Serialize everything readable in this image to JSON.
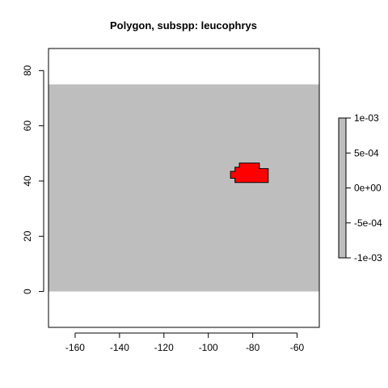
{
  "chart_data": {
    "type": "raster-map",
    "title": "Polygon, subspp: leucophrys",
    "xlim": [
      -172,
      -50
    ],
    "ylim": [
      -13,
      88
    ],
    "x_ticks": [
      -160,
      -140,
      -120,
      -100,
      -80,
      -60
    ],
    "x_tick_labels": [
      "-160",
      "-140",
      "-120",
      "-100",
      "-80",
      "-60"
    ],
    "y_ticks": [
      0,
      20,
      40,
      60,
      80
    ],
    "y_tick_labels": [
      "0",
      "20",
      "40",
      "60",
      "80"
    ],
    "background_extent": {
      "xmin": -172,
      "xmax": -50,
      "ymin": 0,
      "ymax": 75
    },
    "background_color": "#bebebe",
    "polygon_color": "#ff0000",
    "polygon_outline_color": "#000000",
    "polygon": [
      [
        -86,
        39.5
      ],
      [
        -73,
        39.5
      ],
      [
        -73,
        44.5
      ],
      [
        -77,
        44.5
      ],
      [
        -77,
        46.5
      ],
      [
        -86,
        46.5
      ],
      [
        -86,
        45
      ],
      [
        -88,
        45
      ],
      [
        -88,
        43.5
      ],
      [
        -90,
        43.5
      ],
      [
        -90,
        41
      ],
      [
        -88,
        41
      ],
      [
        -88,
        39.5
      ]
    ],
    "legend": {
      "range": [
        -0.001,
        0.001
      ],
      "ticks": [
        0.001,
        0.0005,
        0,
        -0.0005,
        -0.001
      ],
      "tick_labels": [
        "1e-03",
        "5e-04",
        "0e+00",
        "-5e-04",
        "-1e-03"
      ],
      "color": "#bebebe"
    }
  }
}
